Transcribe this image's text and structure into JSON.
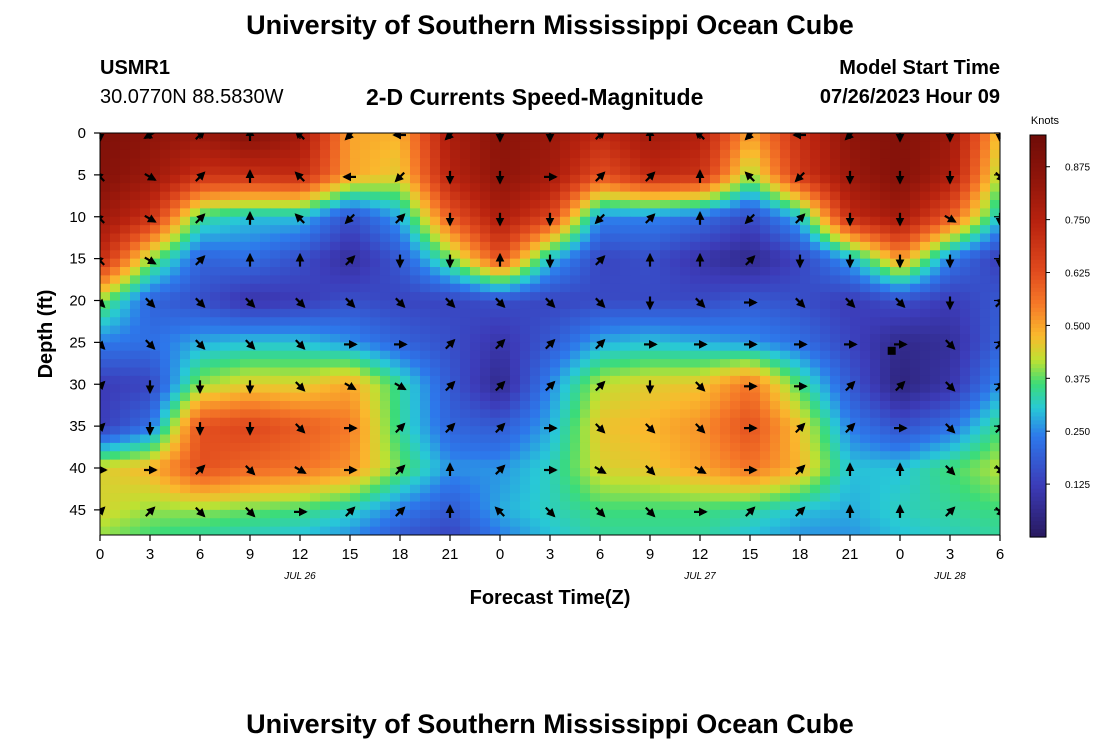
{
  "header": {
    "title": "University of Southern Mississippi Ocean Cube",
    "station_id": "USMR1",
    "coords": "30.0770N  88.5830W",
    "plot_title": "2-D Currents Speed-Magnitude",
    "model_label": "Model Start Time",
    "model_time": "07/26/2023 Hour 09"
  },
  "footer": {
    "title": "University of Southern Mississippi Ocean Cube"
  },
  "chart_data": {
    "type": "heatmap",
    "title": "2-D Currents Speed-Magnitude",
    "xlabel": "Forecast Time(Z)",
    "ylabel": "Depth (ft)",
    "x_ticks": [
      "0",
      "3",
      "6",
      "9",
      "12",
      "15",
      "18",
      "21",
      "0",
      "3",
      "6",
      "9",
      "12",
      "15",
      "18",
      "21",
      "0",
      "3",
      "6"
    ],
    "x_range_hours": [
      0,
      54
    ],
    "y_ticks": [
      0,
      5,
      10,
      15,
      20,
      25,
      30,
      35,
      40,
      45
    ],
    "y_range_ft": [
      0,
      48
    ],
    "date_labels": [
      {
        "label": "JUL 26",
        "hour": 12
      },
      {
        "label": "JUL 27",
        "hour": 36
      },
      {
        "label": "JUL 28",
        "hour": 51
      }
    ],
    "colorbar": {
      "title": "Knots",
      "ticks": [
        "0.875",
        "0.750",
        "0.625",
        "0.500",
        "0.375",
        "0.250",
        "0.125"
      ],
      "tick_values": [
        0.875,
        0.75,
        0.625,
        0.5,
        0.375,
        0.25,
        0.125
      ],
      "range": [
        0,
        0.95
      ]
    },
    "speed_depths_ft": [
      0,
      5,
      10,
      15,
      20,
      25,
      30,
      35,
      40,
      45,
      48
    ],
    "speed_hours": [
      0,
      3,
      6,
      9,
      12,
      15,
      18,
      21,
      24,
      27,
      30,
      33,
      36,
      39,
      42,
      45,
      48,
      51,
      54
    ],
    "speed_knots": [
      [
        0.9,
        0.85,
        0.82,
        0.88,
        0.8,
        0.5,
        0.48,
        0.78,
        0.86,
        0.82,
        0.72,
        0.8,
        0.76,
        0.5,
        0.7,
        0.85,
        0.88,
        0.82,
        0.45
      ],
      [
        0.88,
        0.82,
        0.7,
        0.7,
        0.72,
        0.5,
        0.45,
        0.75,
        0.85,
        0.8,
        0.62,
        0.72,
        0.7,
        0.4,
        0.68,
        0.82,
        0.88,
        0.78,
        0.4
      ],
      [
        0.82,
        0.7,
        0.35,
        0.3,
        0.3,
        0.16,
        0.28,
        0.6,
        0.78,
        0.65,
        0.25,
        0.25,
        0.22,
        0.15,
        0.3,
        0.72,
        0.8,
        0.6,
        0.3
      ],
      [
        0.72,
        0.4,
        0.2,
        0.22,
        0.16,
        0.08,
        0.18,
        0.38,
        0.62,
        0.3,
        0.14,
        0.16,
        0.1,
        0.06,
        0.14,
        0.28,
        0.52,
        0.24,
        0.12
      ],
      [
        0.4,
        0.2,
        0.16,
        0.1,
        0.12,
        0.16,
        0.14,
        0.14,
        0.16,
        0.14,
        0.15,
        0.15,
        0.15,
        0.18,
        0.16,
        0.12,
        0.16,
        0.12,
        0.18
      ],
      [
        0.24,
        0.22,
        0.28,
        0.3,
        0.3,
        0.26,
        0.2,
        0.16,
        0.1,
        0.18,
        0.28,
        0.3,
        0.28,
        0.26,
        0.22,
        0.14,
        0.06,
        0.08,
        0.2
      ],
      [
        0.12,
        0.14,
        0.4,
        0.45,
        0.44,
        0.5,
        0.34,
        0.18,
        0.06,
        0.25,
        0.42,
        0.45,
        0.46,
        0.56,
        0.36,
        0.18,
        0.04,
        0.1,
        0.26
      ],
      [
        0.12,
        0.22,
        0.62,
        0.64,
        0.6,
        0.55,
        0.34,
        0.2,
        0.18,
        0.28,
        0.46,
        0.48,
        0.52,
        0.62,
        0.46,
        0.24,
        0.16,
        0.22,
        0.36
      ],
      [
        0.44,
        0.48,
        0.62,
        0.58,
        0.56,
        0.52,
        0.38,
        0.26,
        0.26,
        0.32,
        0.44,
        0.46,
        0.5,
        0.56,
        0.48,
        0.3,
        0.3,
        0.36,
        0.42
      ],
      [
        0.44,
        0.4,
        0.4,
        0.38,
        0.36,
        0.32,
        0.24,
        0.18,
        0.28,
        0.32,
        0.36,
        0.36,
        0.36,
        0.34,
        0.3,
        0.28,
        0.32,
        0.34,
        0.36
      ],
      [
        0.4,
        0.36,
        0.34,
        0.32,
        0.3,
        0.26,
        0.18,
        0.14,
        0.24,
        0.3,
        0.34,
        0.34,
        0.34,
        0.3,
        0.26,
        0.26,
        0.3,
        0.32,
        0.34
      ]
    ],
    "arrow_rows_ft": [
      0,
      5,
      10,
      15,
      20,
      25,
      30,
      35,
      40,
      45
    ],
    "arrow_cols_hours": [
      0,
      3,
      6,
      9,
      12,
      15,
      18,
      21,
      24,
      27,
      30,
      33,
      36,
      39,
      42,
      45,
      48,
      51,
      54
    ],
    "arrow_dirs_deg": [
      [
        0,
        300,
        135,
        180,
        225,
        315,
        270,
        315,
        0,
        0,
        135,
        180,
        225,
        315,
        270,
        315,
        0,
        0,
        0
      ],
      [
        225,
        60,
        135,
        180,
        225,
        270,
        315,
        0,
        0,
        90,
        135,
        135,
        180,
        225,
        315,
        0,
        0,
        0,
        45
      ],
      [
        225,
        60,
        135,
        180,
        225,
        315,
        135,
        0,
        0,
        0,
        315,
        135,
        180,
        315,
        135,
        0,
        0,
        60,
        0
      ],
      [
        225,
        60,
        135,
        180,
        180,
        135,
        0,
        0,
        180,
        0,
        135,
        180,
        180,
        135,
        0,
        0,
        0,
        0,
        0
      ],
      [
        45,
        45,
        45,
        45,
        45,
        45,
        45,
        45,
        45,
        45,
        45,
        0,
        45,
        90,
        45,
        45,
        45,
        0,
        135
      ],
      [
        45,
        45,
        45,
        45,
        45,
        90,
        90,
        135,
        135,
        135,
        135,
        90,
        90,
        90,
        90,
        90,
        90,
        45,
        135
      ],
      [
        135,
        0,
        0,
        0,
        45,
        60,
        60,
        135,
        135,
        135,
        135,
        0,
        45,
        90,
        90,
        135,
        135,
        45,
        135
      ],
      [
        135,
        0,
        0,
        0,
        45,
        90,
        135,
        135,
        135,
        90,
        45,
        45,
        45,
        90,
        135,
        135,
        90,
        45,
        135
      ],
      [
        90,
        90,
        135,
        45,
        60,
        90,
        135,
        180,
        135,
        90,
        60,
        45,
        60,
        90,
        135,
        180,
        180,
        45,
        45
      ],
      [
        135,
        135,
        45,
        45,
        90,
        135,
        135,
        180,
        225,
        45,
        45,
        45,
        90,
        135,
        135,
        180,
        180,
        135,
        45
      ]
    ],
    "marker": {
      "hour": 47.5,
      "depth_ft": 26
    }
  }
}
